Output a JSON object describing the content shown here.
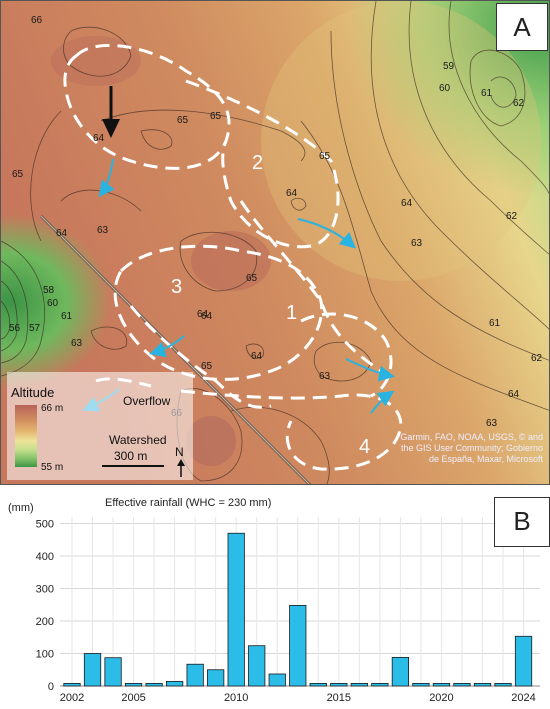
{
  "panel_a": {
    "label": "A",
    "legend": {
      "title": "Altitude",
      "max_label": "66 m",
      "min_label": "55 m"
    },
    "overflow_label": "Overflow",
    "watershed_label": "Watershed",
    "scale_label": "300 m",
    "north_label": "N",
    "attribution": "Garmin, FAO, NOAA, USGS, © and the GIS User Community; Gobierno de España, Maxar, Microsoft",
    "watershed_numbers": [
      "1",
      "2",
      "3",
      "4"
    ],
    "contour_labels": [
      "66",
      "65",
      "65",
      "65",
      "65",
      "64",
      "64",
      "64",
      "64",
      "64",
      "64",
      "64",
      "63",
      "63",
      "63",
      "63",
      "63",
      "62",
      "62",
      "62",
      "61",
      "61",
      "61",
      "60",
      "60",
      "59",
      "58",
      "57",
      "56",
      "66",
      "64",
      "65",
      "65"
    ],
    "colors": {
      "high": "#b8645a",
      "mid": "#e5b56f",
      "low": "#3e9546",
      "flow_arrow": "#29b3e0",
      "watershed_line": "#ffffff"
    }
  },
  "panel_b": {
    "label": "B",
    "chart_data": {
      "type": "bar",
      "title": "Effective rainfall (WHC = 230 mm)",
      "ylabel": "(mm)",
      "xlabel": "",
      "categories": [
        "2002",
        "2003",
        "2004",
        "2005",
        "2006",
        "2007",
        "2008",
        "2009",
        "2010",
        "2011",
        "2012",
        "2013",
        "2014",
        "2015",
        "2016",
        "2017",
        "2018",
        "2019",
        "2020",
        "2021",
        "2022",
        "2023",
        "2024"
      ],
      "values": [
        8,
        100,
        87,
        8,
        8,
        14,
        67,
        50,
        470,
        124,
        37,
        248,
        8,
        8,
        8,
        8,
        88,
        8,
        8,
        8,
        8,
        8,
        153
      ],
      "x_tick_labels": [
        "2002",
        "2005",
        "2010",
        "2015",
        "2020",
        "2024"
      ],
      "x_tick_years": [
        2002,
        2005,
        2010,
        2015,
        2020,
        2024
      ],
      "y_ticks": [
        0,
        100,
        200,
        300,
        400,
        500
      ],
      "ylim": [
        0,
        520
      ],
      "grid": true,
      "bar_color": "#2bbde8"
    }
  }
}
